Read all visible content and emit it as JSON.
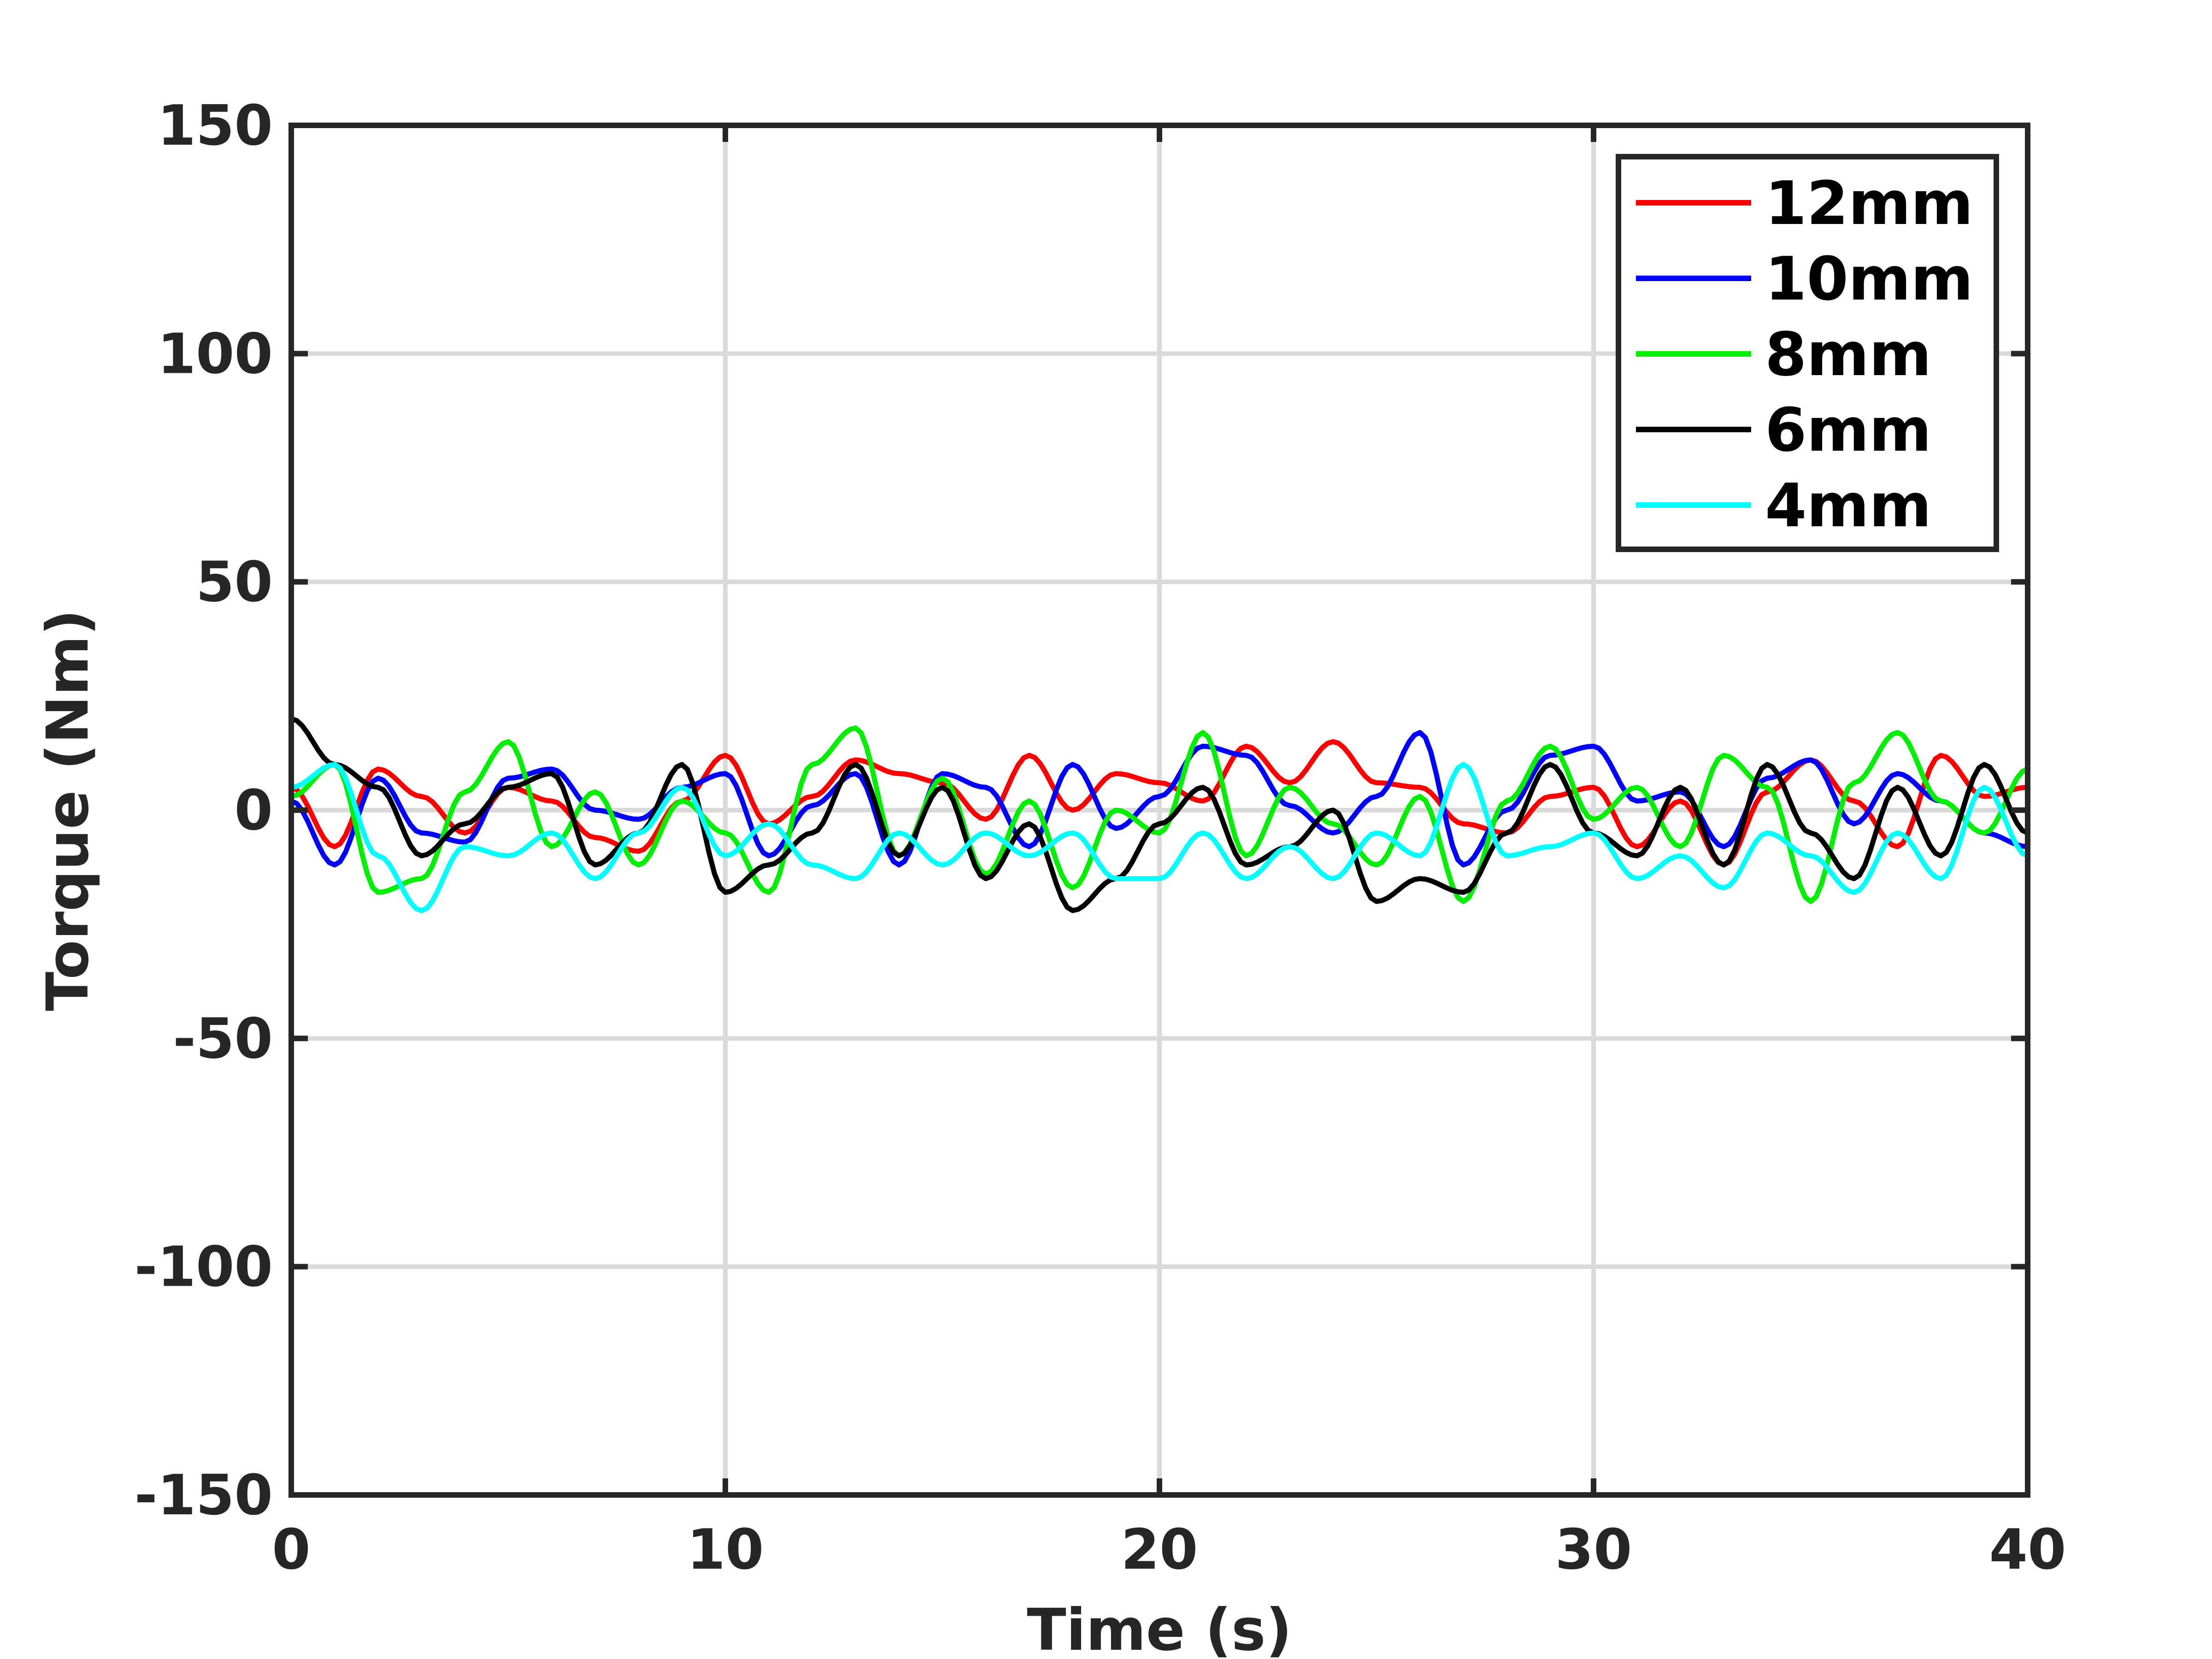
{
  "chart_data": {
    "type": "line",
    "title": "",
    "xlabel": "Time (s)",
    "ylabel": "Torque (Nm)",
    "xlim": [
      0,
      40
    ],
    "ylim": [
      -150,
      150
    ],
    "xticks": [
      0,
      10,
      20,
      30,
      40
    ],
    "xtick_labels": [
      "0",
      "10",
      "20",
      "30",
      "40"
    ],
    "yticks": [
      150,
      100,
      50,
      0,
      -50,
      -100,
      -150
    ],
    "ytick_labels": [
      "150",
      "100",
      "50",
      "0",
      "-50",
      "-100",
      "-150"
    ],
    "grid": true,
    "legend_position": "top-right",
    "x": [
      0,
      1,
      2,
      3,
      4,
      5,
      6,
      7,
      8,
      9,
      10,
      11,
      12,
      13,
      14,
      15,
      16,
      17,
      18,
      19,
      20,
      21,
      22,
      23,
      24,
      25,
      26,
      27,
      28,
      29,
      30,
      31,
      32,
      33,
      34,
      35,
      36,
      37,
      38,
      39,
      40
    ],
    "series": [
      {
        "name": "12mm",
        "color": "#ff0000",
        "values": [
          5,
          -8,
          9,
          3,
          -5,
          5,
          2,
          -6,
          -9,
          2,
          12,
          -3,
          3,
          11,
          8,
          6,
          -2,
          12,
          0,
          8,
          6,
          2,
          14,
          6,
          15,
          6,
          5,
          -3,
          -5,
          3,
          5,
          -8,
          2,
          -12,
          4,
          11,
          2,
          -8,
          12,
          3,
          5
        ]
      },
      {
        "name": "10mm",
        "color": "#0000ff",
        "values": [
          2,
          -12,
          7,
          -5,
          -7,
          7,
          9,
          0,
          -2,
          5,
          8,
          -10,
          1,
          8,
          -12,
          8,
          5,
          -8,
          10,
          -4,
          3,
          14,
          12,
          1,
          -5,
          3,
          17,
          -12,
          0,
          12,
          14,
          2,
          4,
          -8,
          7,
          11,
          -3,
          8,
          2,
          -5,
          -8
        ]
      },
      {
        "name": "8mm",
        "color": "#00ee00",
        "values": [
          3,
          10,
          -18,
          -15,
          4,
          15,
          -8,
          4,
          -12,
          2,
          -5,
          -18,
          10,
          18,
          -10,
          7,
          -14,
          2,
          -17,
          0,
          -5,
          17,
          -10,
          5,
          -3,
          -12,
          3,
          -20,
          2,
          14,
          -2,
          5,
          -8,
          12,
          5,
          -20,
          6,
          17,
          2,
          -5,
          9
        ]
      },
      {
        "name": "6mm",
        "color": "#000000",
        "values": [
          20,
          10,
          5,
          -10,
          -3,
          5,
          8,
          -12,
          -5,
          10,
          -18,
          -12,
          -5,
          10,
          -10,
          5,
          -15,
          -3,
          -22,
          -15,
          -3,
          5,
          -12,
          -8,
          0,
          -20,
          -15,
          -18,
          -5,
          10,
          -5,
          -10,
          5,
          -12,
          10,
          -5,
          -15,
          5,
          -10,
          10,
          -5
        ]
      },
      {
        "name": "4mm",
        "color": "#00ffff",
        "values": [
          5,
          10,
          -10,
          -22,
          -8,
          -10,
          -5,
          -15,
          -5,
          5,
          -10,
          -3,
          -12,
          -15,
          -5,
          -12,
          -5,
          -10,
          -5,
          -15,
          -15,
          -5,
          -15,
          -8,
          -15,
          -5,
          -10,
          10,
          -10,
          -8,
          -5,
          -15,
          -10,
          -17,
          -5,
          -10,
          -18,
          -5,
          -15,
          5,
          -10
        ]
      }
    ]
  }
}
